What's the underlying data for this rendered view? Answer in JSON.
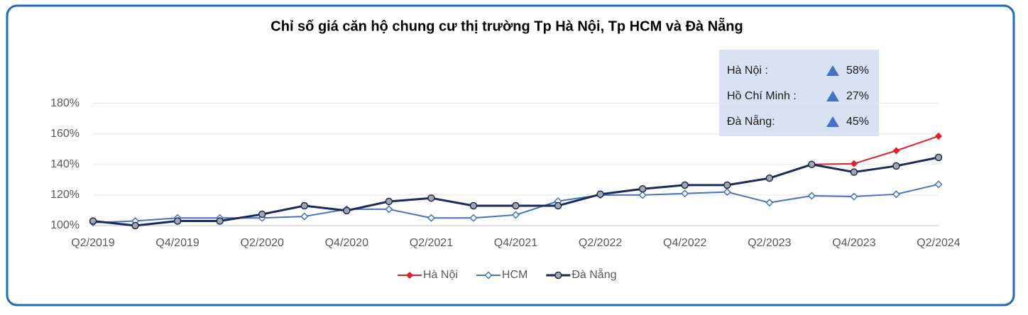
{
  "chart_data": {
    "type": "line",
    "title": "Chỉ số giá căn hộ chung cư thị trường Tp Hà Nội, Tp HCM và Đà Nẵng",
    "categories": [
      "Q2/2019",
      null,
      "Q4/2019",
      null,
      "Q2/2020",
      null,
      "Q4/2020",
      null,
      "Q2/2021",
      null,
      "Q4/2021",
      null,
      "Q2/2022",
      null,
      "Q4/2022",
      null,
      "Q2/2023",
      null,
      "Q4/2023",
      null,
      "Q2/2024"
    ],
    "series": [
      {
        "name": "Hà Nội",
        "color": "#e3202a",
        "marker": "diamond",
        "values": [
          null,
          null,
          null,
          null,
          null,
          null,
          null,
          null,
          null,
          null,
          null,
          null,
          null,
          null,
          null,
          null,
          null,
          140,
          140.5,
          149,
          158.5
        ]
      },
      {
        "name": "HCM",
        "color": "#4472c4",
        "marker": "hollow-diamond",
        "values": [
          102,
          103,
          105,
          105,
          105,
          106,
          110.7,
          110.7,
          105,
          105,
          107,
          116,
          120,
          120,
          121,
          122,
          115,
          119.5,
          119,
          120.5,
          127
        ]
      },
      {
        "name": "Đà Nẵng",
        "color": "#1a2a5e",
        "marker": "circle",
        "values": [
          103,
          100,
          103,
          103,
          107.4,
          113,
          109.8,
          115.8,
          118,
          113,
          113,
          113,
          120.5,
          124,
          126.5,
          126.5,
          131,
          140,
          135,
          139,
          144.6
        ]
      }
    ],
    "ylim": [
      100,
      190
    ],
    "yticks": [
      {
        "value": 100,
        "label": "100%"
      },
      {
        "value": 120,
        "label": "120%"
      },
      {
        "value": 140,
        "label": "140%"
      },
      {
        "value": 160,
        "label": "160%"
      },
      {
        "value": 180,
        "label": "180%"
      }
    ],
    "grid": true,
    "legend": "bottom",
    "annotations": [
      {
        "label": "Hà Nội :",
        "change": "58%"
      },
      {
        "label": "Hồ Chí Minh :",
        "change": "27%"
      },
      {
        "label": "Đà Nẵng:",
        "change": "45%"
      }
    ]
  }
}
